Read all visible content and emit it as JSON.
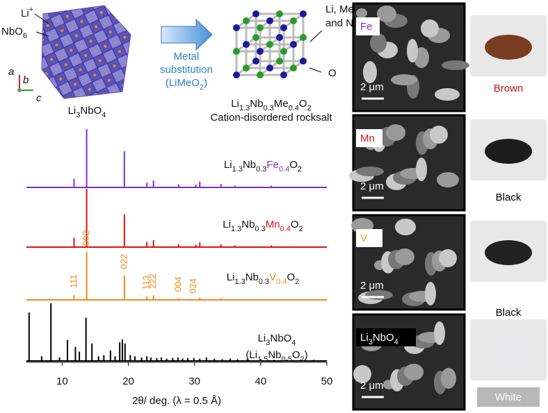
{
  "structures": {
    "li_ion": "Li+",
    "nbo6": "NbO6",
    "axis_a": "a",
    "axis_b": "b",
    "axis_c": "c",
    "parent_name": "Li3NbO4",
    "arrow_text": [
      "Metal",
      "substitution",
      "(LiMeO2)"
    ],
    "sites": [
      "Li, Me,",
      "and Nb"
    ],
    "oxygen": "O",
    "product_formula": "Li1.3Nb0.3Me0.4O2",
    "product_name": "Cation-disordered rocksalt"
  },
  "chart_data": {
    "type": "stem",
    "xlabel": "2θ/ deg. (λ = 0.5 Å)",
    "xlim": [
      4.6,
      50
    ],
    "xticks": [
      10,
      20,
      30,
      40,
      50
    ],
    "series": [
      {
        "name": "Li1.3Nb0.3Fe0.4O2",
        "color": "#7b2fd6",
        "x": [
          11.8,
          13.7,
          19.4,
          22.8,
          23.8,
          27.6,
          30.2,
          30.8,
          34.0,
          36.1,
          41.6
        ],
        "values": [
          15,
          100,
          62,
          8,
          12,
          5,
          5,
          10,
          6,
          3,
          3
        ]
      },
      {
        "name": "Li1.3Nb0.3Mn0.4O2",
        "color": "#e01010",
        "x": [
          11.8,
          13.7,
          19.4,
          22.8,
          23.8,
          27.6,
          30.2,
          30.8,
          34.0,
          36.1,
          41.6
        ],
        "values": [
          16,
          100,
          56,
          9,
          12,
          5,
          4,
          8,
          5,
          3,
          3
        ]
      },
      {
        "name": "Li1.3Nb0.3V0.4O2",
        "color": "#f08a1c",
        "x": [
          11.8,
          13.7,
          19.4,
          22.8,
          23.8,
          27.6,
          30.8,
          34.0
        ],
        "values": [
          8,
          82,
          42,
          6,
          8,
          3,
          4,
          3
        ]
      },
      {
        "name": "Li3NbO4 (Li1.5Nb0.5O2)",
        "color": "#000000",
        "x": [
          5.0,
          6.9,
          8.3,
          9.6,
          10.8,
          12.0,
          12.6,
          13.6,
          14.5,
          15.5,
          16.3,
          17.3,
          18.0,
          18.7,
          19.1,
          19.5,
          20.3,
          21.0,
          22.0,
          22.8,
          23.4,
          24.3,
          25.0,
          25.8,
          26.7,
          27.5,
          28.2,
          29.0,
          29.9,
          30.8,
          31.8,
          33.0,
          34.2,
          35.4,
          36.5,
          38.0,
          40.0,
          42.0,
          44.0,
          46.0,
          48.0
        ],
        "values": [
          83,
          8,
          99,
          6,
          36,
          24,
          16,
          74,
          30,
          8,
          10,
          18,
          8,
          32,
          37,
          30,
          10,
          8,
          6,
          8,
          6,
          5,
          6,
          4,
          5,
          6,
          4,
          5,
          5,
          4,
          6,
          4,
          3,
          4,
          3,
          3,
          3,
          2,
          2,
          2,
          2
        ]
      }
    ],
    "annotations": [
      {
        "text": "111",
        "x": 11.8,
        "series": 2
      },
      {
        "text": "002",
        "x": 13.7,
        "series": 2
      },
      {
        "text": "022",
        "x": 19.4,
        "series": 2
      },
      {
        "text": "113",
        "x": 22.8,
        "series": 2
      },
      {
        "text": "222",
        "x": 23.8,
        "series": 2
      },
      {
        "text": "004",
        "x": 27.6,
        "series": 2
      },
      {
        "text": "024",
        "x": 29.9,
        "series": 2
      }
    ]
  },
  "micrographs": [
    {
      "label": "Fe",
      "label_color": "#7b2fd6",
      "scale": "2 μm",
      "color_name": "Brown",
      "name_color": "#c0121a"
    },
    {
      "label": "Mn",
      "label_color": "#e01010",
      "scale": "2 μm",
      "color_name": "Black",
      "name_color": "#000000"
    },
    {
      "label": "V",
      "label_color": "#f0a01c",
      "scale": "2 μm",
      "color_name": "Black",
      "name_color": "#000000"
    },
    {
      "label": "Li3NbO4",
      "label_color": "#ffffff",
      "scale": "2 μm",
      "color_name": "White",
      "name_color": "#ffffff"
    }
  ]
}
